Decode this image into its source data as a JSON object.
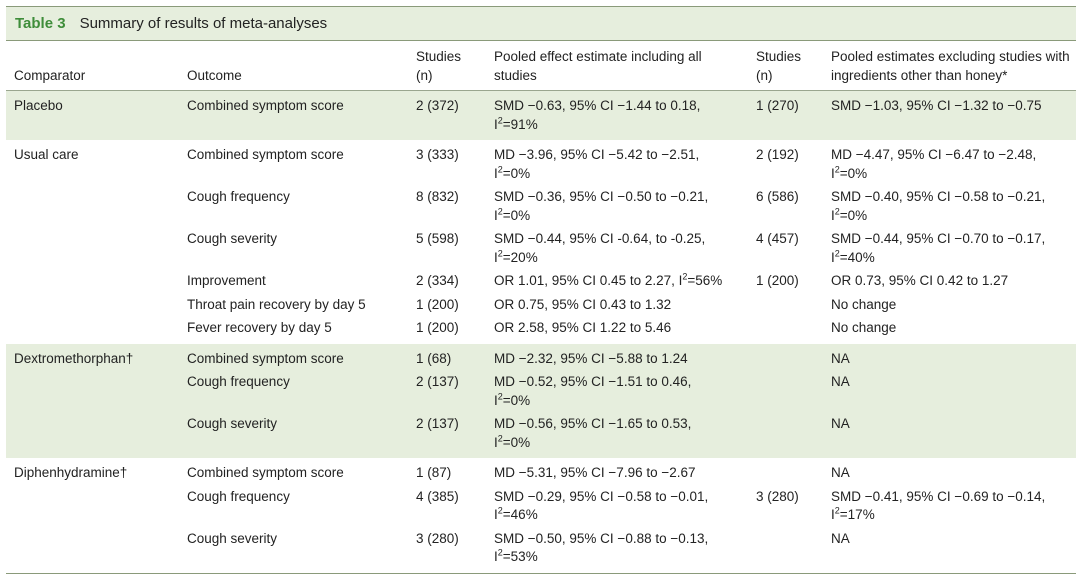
{
  "table": {
    "label": "Table 3",
    "title": "Summary of results of meta-analyses",
    "headers": {
      "comparator": "Comparator",
      "outcome": "Outcome",
      "studies_all": "Studies\n(n)",
      "pooled_all": "Pooled effect estimate including all studies",
      "studies_excl": "Studies\n(n)",
      "pooled_excl": "Pooled estimates excluding studies with ingredients other than honey*"
    },
    "groups": [
      {
        "comparator": "Placebo",
        "rows": [
          {
            "outcome": "Combined symptom score",
            "studies_all": "2 (372)",
            "pooled_all": "SMD −0.63, 95% CI −1.44 to 0.18,",
            "pooled_all_i2": "91%",
            "studies_excl": "1 (270)",
            "pooled_excl": "SMD −1.03, 95% CI −1.32 to −0.75",
            "pooled_excl_i2": ""
          }
        ]
      },
      {
        "comparator": "Usual care",
        "rows": [
          {
            "outcome": "Combined symptom score",
            "studies_all": "3 (333)",
            "pooled_all": "MD −3.96, 95% CI −5.42 to −2.51,",
            "pooled_all_i2": "0%",
            "studies_excl": "2 (192)",
            "pooled_excl": "MD −4.47, 95% CI −6.47 to −2.48,",
            "pooled_excl_i2": "0%"
          },
          {
            "outcome": "Cough frequency",
            "studies_all": "8 (832)",
            "pooled_all": "SMD −0.36, 95% CI −0.50 to −0.21,",
            "pooled_all_i2": "0%",
            "studies_excl": "6 (586)",
            "pooled_excl": "SMD −0.40, 95% CI −0.58 to −0.21,",
            "pooled_excl_i2": "0%"
          },
          {
            "outcome": "Cough severity",
            "studies_all": "5 (598)",
            "pooled_all": "SMD −0.44, 95% CI -0.64, to -0.25,",
            "pooled_all_i2": "20%",
            "studies_excl": "4 (457)",
            "pooled_excl": "SMD −0.44, 95% CI −0.70 to −0.17,",
            "pooled_excl_i2": "40%"
          },
          {
            "outcome": "Improvement",
            "studies_all": "2 (334)",
            "pooled_all": "OR 1.01, 95% CI 0.45 to 2.27, I",
            "pooled_all_inline_i2": "=56%",
            "studies_excl": "1 (200)",
            "pooled_excl": "OR 0.73, 95% CI 0.42 to 1.27",
            "pooled_excl_i2": ""
          },
          {
            "outcome": "Throat pain recovery by day 5",
            "studies_all": "1 (200)",
            "pooled_all": "OR 0.75, 95% CI 0.43 to 1.32",
            "pooled_all_i2": "",
            "studies_excl": "",
            "pooled_excl": "No change",
            "pooled_excl_i2": ""
          },
          {
            "outcome": "Fever recovery by day 5",
            "studies_all": "1 (200)",
            "pooled_all": "OR 2.58, 95% CI 1.22 to 5.46",
            "pooled_all_i2": "",
            "studies_excl": "",
            "pooled_excl": "No change",
            "pooled_excl_i2": ""
          }
        ]
      },
      {
        "comparator": "Dextromethorphan†",
        "rows": [
          {
            "outcome": "Combined symptom score",
            "studies_all": "1 (68)",
            "pooled_all": "MD −2.32, 95% CI −5.88 to 1.24",
            "pooled_all_i2": "",
            "studies_excl": "",
            "pooled_excl": "NA",
            "pooled_excl_i2": ""
          },
          {
            "outcome": "Cough frequency",
            "studies_all": "2 (137)",
            "pooled_all": "MD −0.52, 95% CI −1.51 to 0.46,",
            "pooled_all_i2": "0%",
            "studies_excl": "",
            "pooled_excl": "NA",
            "pooled_excl_i2": ""
          },
          {
            "outcome": "Cough severity",
            "studies_all": "2 (137)",
            "pooled_all": "MD −0.56, 95% CI −1.65 to 0.53,",
            "pooled_all_i2": "0%",
            "studies_excl": "",
            "pooled_excl": "NA",
            "pooled_excl_i2": ""
          }
        ]
      },
      {
        "comparator": "Diphenhydramine†",
        "rows": [
          {
            "outcome": "Combined symptom score",
            "studies_all": "1 (87)",
            "pooled_all": "MD −5.31, 95% CI −7.96 to −2.67",
            "pooled_all_i2": "",
            "studies_excl": "",
            "pooled_excl": "NA",
            "pooled_excl_i2": ""
          },
          {
            "outcome": "Cough frequency",
            "studies_all": "4 (385)",
            "pooled_all": "SMD −0.29, 95% CI −0.58 to −0.01,",
            "pooled_all_i2": "46%",
            "studies_excl": "3 (280)",
            "pooled_excl": "SMD −0.41, 95% CI −0.69 to −0.14,",
            "pooled_excl_i2": "17%"
          },
          {
            "outcome": "Cough severity",
            "studies_all": "3 (280)",
            "pooled_all": "SMD −0.50, 95% CI −0.88 to −0.13,",
            "pooled_all_i2": "53%",
            "studies_excl": "",
            "pooled_excl": "NA",
            "pooled_excl_i2": ""
          }
        ]
      }
    ],
    "i2_prefix": "I",
    "i2_sup": "2",
    "i2_eq": "=",
    "colors": {
      "accent": "#3f8d3a",
      "band": "#e6eedd",
      "rule": "#8a9a7a",
      "text": "#222222"
    }
  }
}
